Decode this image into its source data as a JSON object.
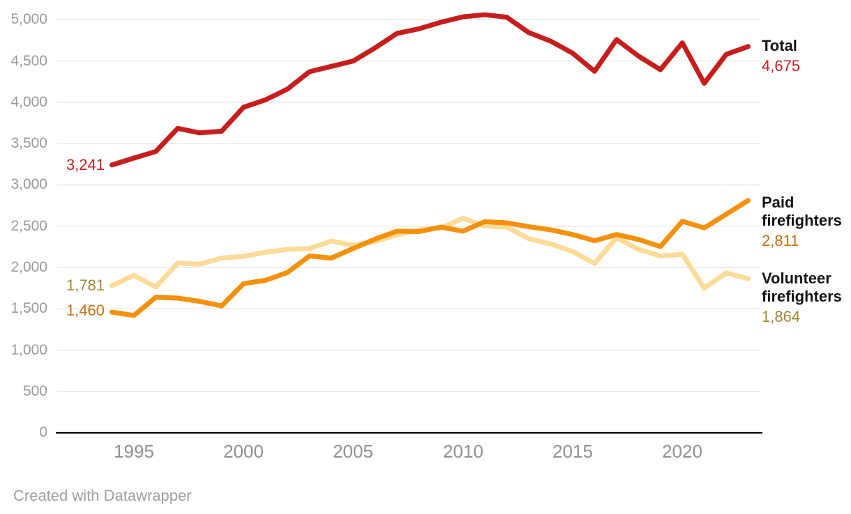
{
  "chart_data": {
    "type": "line",
    "title": "",
    "xlabel": "",
    "ylabel": "",
    "xlim": [
      1994,
      2023
    ],
    "ylim": [
      0,
      5000
    ],
    "grid": true,
    "legend_position": "right",
    "x": [
      1994,
      1995,
      1996,
      1997,
      1998,
      1999,
      2000,
      2001,
      2002,
      2003,
      2004,
      2005,
      2006,
      2007,
      2008,
      2009,
      2010,
      2011,
      2012,
      2013,
      2014,
      2015,
      2016,
      2017,
      2018,
      2019,
      2020,
      2021,
      2022,
      2023
    ],
    "xticks": [
      1995,
      2000,
      2005,
      2010,
      2015,
      2020
    ],
    "yticks": [
      {
        "value": 0,
        "label": "0"
      },
      {
        "value": 500,
        "label": "500"
      },
      {
        "value": 1000,
        "label": "1,000"
      },
      {
        "value": 1500,
        "label": "1,500"
      },
      {
        "value": 2000,
        "label": "2,000"
      },
      {
        "value": 2500,
        "label": "2,500"
      },
      {
        "value": 3000,
        "label": "3,000"
      },
      {
        "value": 3500,
        "label": "3,500"
      },
      {
        "value": 4000,
        "label": "4,000"
      },
      {
        "value": 4500,
        "label": "4,500"
      },
      {
        "value": 5000,
        "label": "5,000"
      }
    ],
    "series": [
      {
        "id": "total",
        "name": "Total",
        "color": "#c71e1d",
        "value_color": "#c71e1d",
        "start_label": "3,241",
        "end_label": "4,675",
        "values": [
          3241,
          3325,
          3405,
          3685,
          3630,
          3650,
          3940,
          4030,
          4160,
          4370,
          4435,
          4500,
          4660,
          4835,
          4890,
          4970,
          5035,
          5060,
          5030,
          4845,
          4740,
          4595,
          4375,
          4760,
          4560,
          4395,
          4720,
          4230,
          4580,
          4675
        ]
      },
      {
        "id": "paid-firefighters",
        "name": "Paid firefighters",
        "color": "#f5900a",
        "value_color": "#c96e0b",
        "start_label": "1,460",
        "end_label": "2,811",
        "values": [
          1460,
          1420,
          1640,
          1630,
          1590,
          1535,
          1805,
          1845,
          1940,
          2140,
          2115,
          2230,
          2345,
          2440,
          2435,
          2490,
          2440,
          2555,
          2540,
          2495,
          2455,
          2400,
          2325,
          2400,
          2340,
          2255,
          2560,
          2480,
          2645,
          2811
        ]
      },
      {
        "id": "volunteer-firefighters",
        "name": "Volunteer firefighters",
        "color": "#fbdb97",
        "value_color": "#9d8a2f",
        "start_label": "1,781",
        "end_label": "1,864",
        "values": [
          1781,
          1905,
          1765,
          2055,
          2040,
          2115,
          2135,
          2185,
          2220,
          2230,
          2320,
          2270,
          2315,
          2395,
          2455,
          2480,
          2595,
          2505,
          2490,
          2350,
          2285,
          2195,
          2050,
          2360,
          2220,
          2140,
          2160,
          1750,
          1935,
          1864
        ]
      }
    ],
    "axis_colors": {
      "gridline": "#e7e7e7",
      "zero_line": "#16191d",
      "tick_text": "#9b9b9b"
    }
  },
  "footer": {
    "attribution": "Created with Datawrapper"
  }
}
